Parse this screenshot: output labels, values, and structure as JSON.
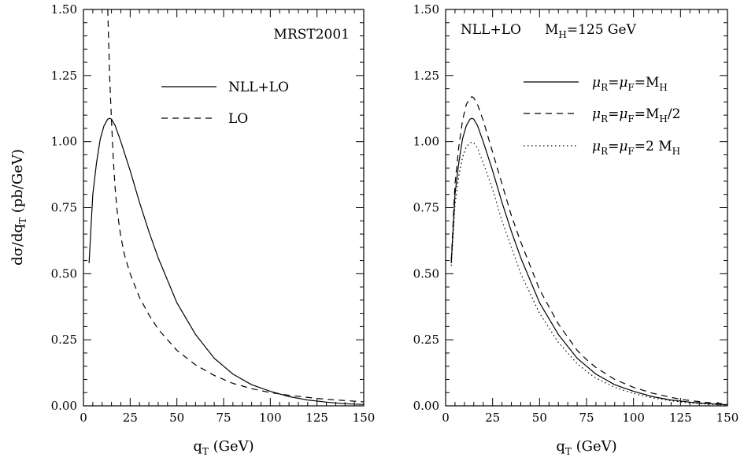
{
  "chart_data": [
    {
      "type": "line",
      "annotation": "MRST2001",
      "xlabel": "q_T (GeV)",
      "ylabel": "dσ/dq_T (pb/GeV)",
      "xlim": [
        0,
        150
      ],
      "ylim": [
        0,
        1.5
      ],
      "xticks": [
        "0",
        "25",
        "50",
        "75",
        "100",
        "125",
        "150"
      ],
      "yticks": [
        "0.00",
        "0.25",
        "0.50",
        "0.75",
        "1.00",
        "1.25",
        "1.50"
      ],
      "legend_position": "upper-right",
      "series": [
        {
          "name": "NLL+LO",
          "style": "solid",
          "x": [
            3,
            5,
            7,
            9,
            11,
            13,
            14,
            15,
            17,
            20,
            25,
            30,
            35,
            40,
            50,
            60,
            70,
            75,
            80,
            90,
            100,
            110,
            120,
            125,
            130,
            140,
            150
          ],
          "y": [
            0.54,
            0.8,
            0.92,
            1.01,
            1.06,
            1.085,
            1.088,
            1.085,
            1.06,
            1.0,
            0.89,
            0.77,
            0.66,
            0.56,
            0.39,
            0.27,
            0.18,
            0.15,
            0.12,
            0.08,
            0.055,
            0.035,
            0.022,
            0.018,
            0.014,
            0.008,
            0.005
          ]
        },
        {
          "name": "LO",
          "style": "dashed",
          "x": [
            13,
            14,
            15,
            16,
            17,
            18,
            20,
            22,
            25,
            30,
            35,
            40,
            50,
            60,
            70,
            75,
            80,
            90,
            100,
            110,
            120,
            125,
            130,
            140,
            150
          ],
          "y": [
            1.5,
            1.25,
            1.08,
            0.93,
            0.82,
            0.74,
            0.64,
            0.57,
            0.5,
            0.41,
            0.345,
            0.29,
            0.21,
            0.155,
            0.115,
            0.1,
            0.085,
            0.065,
            0.05,
            0.04,
            0.032,
            0.028,
            0.025,
            0.02,
            0.015
          ]
        }
      ]
    },
    {
      "type": "line",
      "annotation": "NLL+LO   M_H=125 GeV",
      "xlabel": "q_T (GeV)",
      "ylabel": "",
      "xlim": [
        0,
        150
      ],
      "ylim": [
        0,
        1.5
      ],
      "xticks": [
        "0",
        "25",
        "50",
        "75",
        "100",
        "125",
        "150"
      ],
      "yticks": [
        "0.00",
        "0.25",
        "0.50",
        "0.75",
        "1.00",
        "1.25",
        "1.50"
      ],
      "legend_position": "upper-right",
      "series": [
        {
          "name": "μR=μF=MH",
          "style": "solid",
          "x": [
            3,
            5,
            7,
            9,
            11,
            13,
            14,
            15,
            17,
            20,
            25,
            30,
            35,
            40,
            50,
            60,
            70,
            75,
            80,
            90,
            100,
            110,
            120,
            125,
            130,
            140,
            150
          ],
          "y": [
            0.54,
            0.8,
            0.92,
            1.01,
            1.06,
            1.085,
            1.088,
            1.085,
            1.06,
            1.0,
            0.89,
            0.77,
            0.66,
            0.56,
            0.39,
            0.27,
            0.18,
            0.15,
            0.12,
            0.08,
            0.055,
            0.035,
            0.022,
            0.018,
            0.014,
            0.008,
            0.004
          ]
        },
        {
          "name": "μR=μF=MH/2",
          "style": "dashed",
          "x": [
            3,
            5,
            7,
            9,
            11,
            13,
            14,
            15,
            17,
            20,
            25,
            30,
            35,
            40,
            50,
            60,
            70,
            75,
            80,
            90,
            100,
            110,
            120,
            125,
            130,
            140,
            150
          ],
          "y": [
            0.55,
            0.84,
            0.98,
            1.08,
            1.14,
            1.165,
            1.17,
            1.165,
            1.14,
            1.08,
            0.96,
            0.84,
            0.72,
            0.62,
            0.44,
            0.31,
            0.21,
            0.175,
            0.145,
            0.1,
            0.07,
            0.048,
            0.032,
            0.025,
            0.02,
            0.012,
            0.007
          ]
        },
        {
          "name": "μR=μF=2 MH",
          "style": "dotted",
          "x": [
            3,
            5,
            7,
            9,
            11,
            13,
            14,
            15,
            17,
            20,
            25,
            30,
            35,
            40,
            50,
            60,
            70,
            75,
            80,
            90,
            100,
            110,
            120,
            125,
            130,
            140,
            150
          ],
          "y": [
            0.53,
            0.76,
            0.87,
            0.94,
            0.98,
            0.995,
            0.998,
            0.995,
            0.975,
            0.92,
            0.82,
            0.7,
            0.6,
            0.5,
            0.35,
            0.24,
            0.16,
            0.13,
            0.105,
            0.07,
            0.047,
            0.03,
            0.019,
            0.015,
            0.011,
            0.006,
            0.003
          ]
        }
      ]
    }
  ],
  "styles": {
    "line_color": "#000000",
    "background": "#ffffff"
  }
}
